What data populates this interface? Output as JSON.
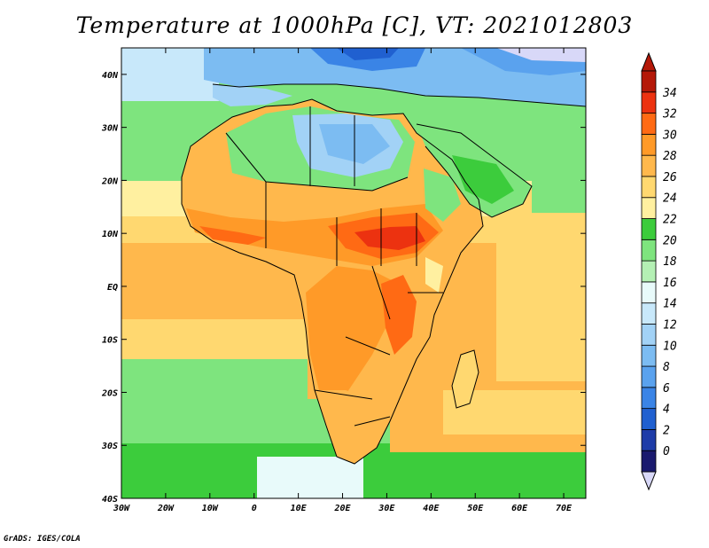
{
  "title": "Temperature at 1000hPa [C], VT: 2021012803",
  "credit": "GrADS: IGES/COLA",
  "map": {
    "lon_range": [
      -30,
      75
    ],
    "lat_range": [
      -40,
      45
    ],
    "x_tick_labels": [
      "30W",
      "20W",
      "10W",
      "0",
      "10E",
      "20E",
      "30E",
      "40E",
      "50E",
      "60E",
      "70E"
    ],
    "y_tick_labels": [
      "40S",
      "30S",
      "20S",
      "10S",
      "EQ",
      "10N",
      "20N",
      "30N",
      "40N"
    ]
  },
  "colorbar": {
    "levels": [
      "0",
      "2",
      "4",
      "6",
      "8",
      "10",
      "12",
      "14",
      "16",
      "18",
      "20",
      "22",
      "24",
      "26",
      "28",
      "30",
      "32",
      "34"
    ],
    "colors": [
      "#1a1a6e",
      "#1e3ca8",
      "#2060d0",
      "#3a84e6",
      "#5aa2ee",
      "#7cbcf2",
      "#a2d2f6",
      "#c8e8fa",
      "#e8fafa",
      "#b4f0b4",
      "#7ee47e",
      "#3ccc3c",
      "#fff0a0",
      "#ffd870",
      "#ffb84c",
      "#ff9a28",
      "#ff6a14",
      "#ec3210",
      "#b41808"
    ],
    "under_color": "#d8d8f8",
    "over_color": "#b41808"
  }
}
